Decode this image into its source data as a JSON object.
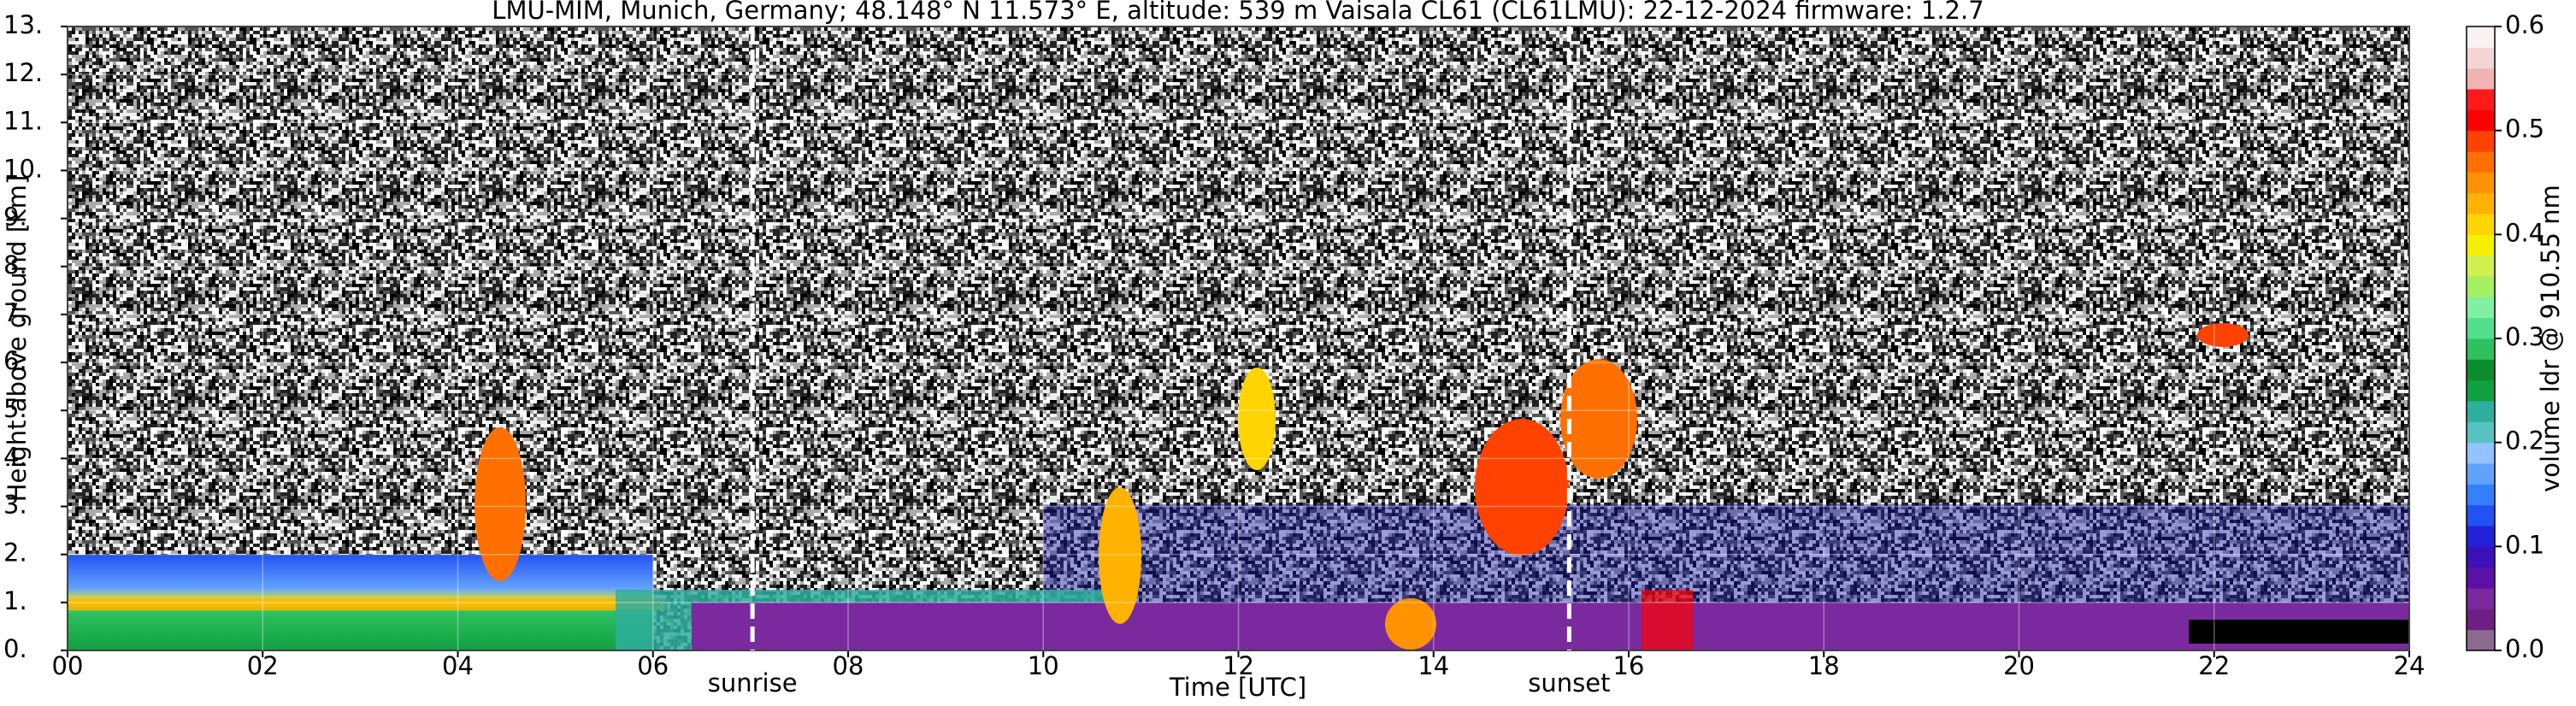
{
  "chart_data": {
    "type": "heatmap",
    "title": "LMU-MIM, Munich, Germany; 48.148° N 11.573° E, altitude: 539 m    Vaisala CL61 (CL61LMU): 22-12-2024    firmware: 1.2.7",
    "xlabel": "Time [UTC]",
    "ylabel": "Height above ground [km]",
    "xlim": [
      0,
      24
    ],
    "xticks": [
      {
        "value": 0,
        "label": "00"
      },
      {
        "value": 2,
        "label": "02"
      },
      {
        "value": 4,
        "label": "04"
      },
      {
        "value": 6,
        "label": "06"
      },
      {
        "value": 8,
        "label": "08"
      },
      {
        "value": 10,
        "label": "10"
      },
      {
        "value": 12,
        "label": "12"
      },
      {
        "value": 14,
        "label": "14"
      },
      {
        "value": 16,
        "label": "16"
      },
      {
        "value": 18,
        "label": "18"
      },
      {
        "value": 20,
        "label": "20"
      },
      {
        "value": 22,
        "label": "22"
      },
      {
        "value": 24,
        "label": "24"
      }
    ],
    "ylim": [
      0,
      13
    ],
    "yticks": [
      {
        "value": 0,
        "label": "0."
      },
      {
        "value": 1,
        "label": "1."
      },
      {
        "value": 2,
        "label": "2."
      },
      {
        "value": 3,
        "label": "3."
      },
      {
        "value": 4,
        "label": "4."
      },
      {
        "value": 5,
        "label": "5."
      },
      {
        "value": 6,
        "label": "6."
      },
      {
        "value": 7,
        "label": "7."
      },
      {
        "value": 8,
        "label": "8."
      },
      {
        "value": 9,
        "label": "9."
      },
      {
        "value": 10,
        "label": "10."
      },
      {
        "value": 11,
        "label": "11."
      },
      {
        "value": 12,
        "label": "12."
      },
      {
        "value": 13,
        "label": "13."
      }
    ],
    "grid": true,
    "annotations": [
      {
        "text": "sunrise",
        "x": 7.02
      },
      {
        "text": "sunset",
        "x": 15.39
      }
    ],
    "colorbar": {
      "label": "volume ldr @ 910.55 nm",
      "clim": [
        0,
        0.6
      ],
      "ticks": [
        {
          "value": 0,
          "label": "0.0"
        },
        0.1,
        0.2,
        0.3,
        0.4,
        0.5,
        0.6
      ],
      "colors": [
        "#8c6a90",
        "#6e1f86",
        "#7a2a9e",
        "#5c10a6",
        "#3c12b8",
        "#2222d8",
        "#2452f2",
        "#3480ff",
        "#62a2ff",
        "#92c2ff",
        "#56c2c2",
        "#2fae9e",
        "#10a040",
        "#0c8c2c",
        "#2fc060",
        "#52e08e",
        "#82f0a2",
        "#a4f062",
        "#d2f050",
        "#f4f000",
        "#ffd400",
        "#ffb200",
        "#ff9200",
        "#ff7000",
        "#ff4200",
        "#ff0000",
        "#ff1a1a",
        "#f0b4b4",
        "#f4d4d4",
        "#f8f2f2"
      ]
    }
  }
}
